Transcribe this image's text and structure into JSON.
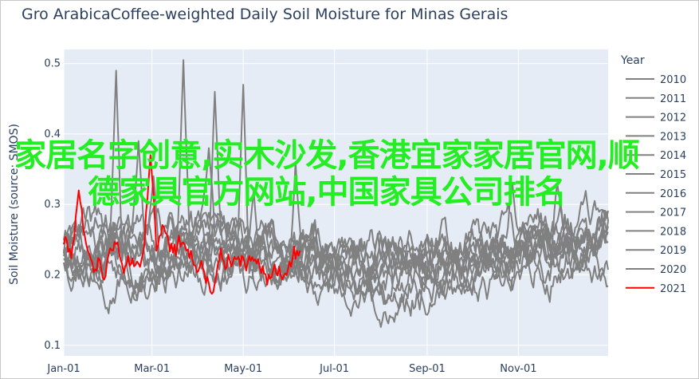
{
  "overlay_text": "家居名字创意,实木沙发,香港宜家家居官网,顺德家具官方网站,中国家具公司排名",
  "chart_data": {
    "type": "line",
    "title": "Gro ArabicaCoffee-weighted Daily Soil Moisture for Minas Gerais",
    "ylabel": "Soil Moisture (source: SMOS)",
    "xlabel": "",
    "ylim": [
      0.085,
      0.52
    ],
    "yticks": [
      0.1,
      0.2,
      0.3,
      0.4,
      0.5
    ],
    "xticks": [
      "Jan-01",
      "Mar-01",
      "May-01",
      "Jul-01",
      "Sep-01",
      "Nov-01"
    ],
    "xtick_days": [
      0,
      59,
      120,
      181,
      243,
      304
    ],
    "xlim_days": [
      0,
      364
    ],
    "grid": true,
    "legend": {
      "title": "Year",
      "placement": "right"
    },
    "colors": {
      "historic": "#808080",
      "current": "#ff0000",
      "plot_bg": "#e5ecf6"
    },
    "series": [
      {
        "name": "2010",
        "color": "#808080",
        "seed": 11,
        "end_day": 364,
        "peaks": [
          [
            35,
            0.49
          ]
        ]
      },
      {
        "name": "2011",
        "color": "#808080",
        "seed": 23,
        "end_day": 364,
        "peaks": [
          [
            80,
            0.505
          ]
        ]
      },
      {
        "name": "2012",
        "color": "#808080",
        "seed": 37,
        "end_day": 364,
        "peaks": [
          [
            101,
            0.46
          ]
        ]
      },
      {
        "name": "2013",
        "color": "#808080",
        "seed": 41,
        "end_day": 364,
        "peaks": [
          [
            50,
            0.39
          ]
        ]
      },
      {
        "name": "2014",
        "color": "#808080",
        "seed": 53,
        "end_day": 364,
        "peaks": [
          [
            120,
            0.47
          ]
        ]
      },
      {
        "name": "2015",
        "color": "#808080",
        "seed": 67,
        "end_day": 364,
        "peaks": [
          [
            97,
            0.38
          ]
        ]
      },
      {
        "name": "2016",
        "color": "#808080",
        "seed": 71,
        "end_day": 364,
        "peaks": [
          [
            127,
            0.32
          ]
        ]
      },
      {
        "name": "2017",
        "color": "#808080",
        "seed": 83,
        "end_day": 364,
        "peaks": [
          [
            155,
            0.36
          ]
        ]
      },
      {
        "name": "2018",
        "color": "#808080",
        "seed": 97,
        "end_day": 364,
        "peaks": [
          [
            300,
            0.33
          ]
        ]
      },
      {
        "name": "2019",
        "color": "#808080",
        "seed": 101,
        "end_day": 364,
        "peaks": [
          [
            330,
            0.33
          ]
        ]
      },
      {
        "name": "2020",
        "color": "#808080",
        "seed": 113,
        "end_day": 364,
        "peaks": [
          [
            60,
            0.34
          ]
        ]
      },
      {
        "name": "2021",
        "color": "#ff0000",
        "seed": 127,
        "end_day": 158,
        "peaks": [
          [
            10,
            0.32
          ],
          [
            58,
            0.37
          ]
        ]
      }
    ]
  }
}
